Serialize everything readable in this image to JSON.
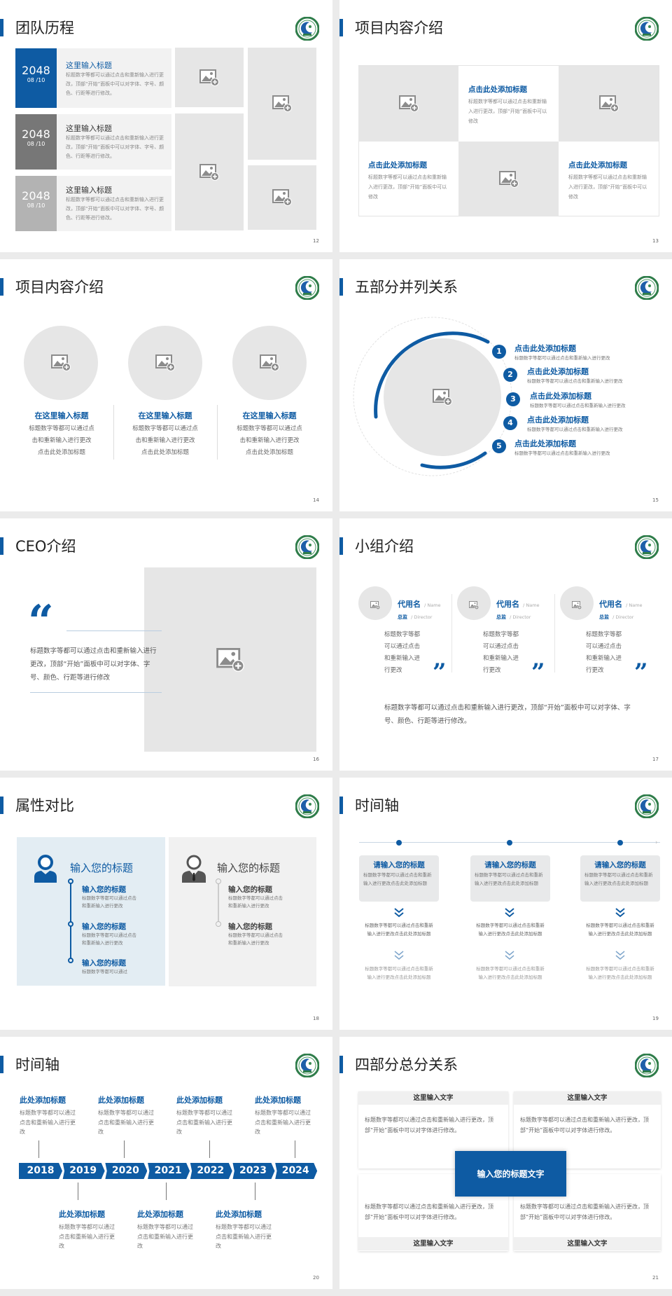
{
  "colors": {
    "accent": "#0e5ba3",
    "placeholder": "#e6e6e6",
    "page_bg": "#ebebeb"
  },
  "icons": {
    "image": "image-placeholder-icon",
    "logo": "school-logo",
    "quote": "quote-mark-icon",
    "person": "person-icon",
    "chevron": "double-chevron-down-icon"
  },
  "s12": {
    "title": "团队历程",
    "page": "12",
    "items": [
      {
        "year": "2048",
        "date": "08 /10",
        "heading": "这里输入标题",
        "body": "标题数字等都可以通过点击和重新输入进行更改，顶部“开始”面板中可以对字体、字号、颜色、行距等进行修改。"
      },
      {
        "year": "2048",
        "date": "08 /10",
        "heading": "这里输入标题",
        "body": "标题数字等都可以通过点击和重新输入进行更改，顶部“开始”面板中可以对字体、字号、颜色、行距等进行修改。"
      },
      {
        "year": "2048",
        "date": "08 /10",
        "heading": "这里输入标题",
        "body": "标题数字等都可以通过点击和重新输入进行更改，顶部“开始”面板中可以对字体、字号、颜色、行距等进行修改。"
      }
    ]
  },
  "s13": {
    "title": "项目内容介绍",
    "page": "13",
    "cells": [
      {
        "heading": "点击此处添加标题",
        "body": "标题数字等都可以通过点击和重新输入进行更改，顶部“开始”面板中可以修改"
      },
      {
        "heading": "点击此处添加标题",
        "body": "标题数字等都可以通过点击和重新输入进行更改，顶部“开始”面板中可以修改"
      },
      {
        "heading": "点击此处添加标题",
        "body": "标题数字等都可以通过点击和重新输入进行更改，顶部“开始”面板中可以修改"
      }
    ]
  },
  "s14": {
    "title": "项目内容介绍",
    "page": "14",
    "items": [
      {
        "heading": "在这里输入标题",
        "lines": [
          "标题数字等都可以通过点",
          "击和重新输入进行更改",
          "点击此处添加标题"
        ]
      },
      {
        "heading": "在这里输入标题",
        "lines": [
          "标题数字等都可以通过点",
          "击和重新输入进行更改",
          "点击此处添加标题"
        ]
      },
      {
        "heading": "在这里输入标题",
        "lines": [
          "标题数字等都可以通过点",
          "击和重新输入进行更改",
          "点击此处添加标题"
        ]
      }
    ]
  },
  "s15": {
    "title": "五部分并列关系",
    "page": "15",
    "items": [
      {
        "num": "1",
        "heading": "点击此处添加标题",
        "body": "标题数字等都可以通过点击和重新输入进行更改"
      },
      {
        "num": "2",
        "heading": "点击此处添加标题",
        "body": "标题数字等都可以通过点击和重新输入进行更改"
      },
      {
        "num": "3",
        "heading": "点击此处添加标题",
        "body": "标题数字等都可以通过点击和重新输入进行更改"
      },
      {
        "num": "4",
        "heading": "点击此处添加标题",
        "body": "标题数字等都可以通过点击和重新输入进行更改"
      },
      {
        "num": "5",
        "heading": "点击此处添加标题",
        "body": "标题数字等都可以通过点击和重新输入进行更改"
      }
    ]
  },
  "s16": {
    "title": "CEO介绍",
    "page": "16",
    "quote_mark": "“",
    "body": "标题数字等都可以通过点击和重新输入进行更改，顶部“开始”面板中可以对字体、字号、颜色、行距等进行修改"
  },
  "s17": {
    "title": "小组介绍",
    "page": "17",
    "members": [
      {
        "name": "代用名",
        "name_en": "/ Name",
        "role": "总监",
        "role_en": "/ Director",
        "lines": [
          "标题数字等都",
          "可以通过点击",
          "和重新输入进",
          "行更改"
        ]
      },
      {
        "name": "代用名",
        "name_en": "/ Name",
        "role": "总监",
        "role_en": "/ Director",
        "lines": [
          "标题数字等都",
          "可以通过点击",
          "和重新输入进",
          "行更改"
        ]
      },
      {
        "name": "代用名",
        "name_en": "/ Name",
        "role": "总监",
        "role_en": "/ Director",
        "lines": [
          "标题数字等都",
          "可以通过点击",
          "和重新输入进",
          "行更改"
        ]
      }
    ],
    "quote_mark": "”",
    "footer": "标题数字等都可以通过点击和重新输入进行更改，顶部“开始”面板中可以对字体、字号、颜色、行距等进行修改。"
  },
  "s18": {
    "title": "属性对比",
    "page": "18",
    "left": {
      "heading": "输入您的标题",
      "items": [
        {
          "t": "输入您的标题",
          "b": "标题数字等都可以通过点击和重新输入进行更改"
        },
        {
          "t": "输入您的标题",
          "b": "标题数字等都可以通过点击和重新输入进行更改"
        },
        {
          "t": "输入您的标题",
          "b": "标题数字等都可以通过"
        }
      ]
    },
    "right": {
      "heading": "输入您的标题",
      "items": [
        {
          "t": "输入您的标题",
          "b": "标题数字等都可以通过点击和重新输入进行更改"
        },
        {
          "t": "输入您的标题",
          "b": "标题数字等都可以通过点击和重新输入进行更改"
        }
      ]
    }
  },
  "s19": {
    "title": "时间轴",
    "page": "19",
    "cols": [
      {
        "heading": "请输入您的标题",
        "body": "标题数字等都可以通过点击和重新输入进行更改点击此处添加标题",
        "sub1": "标题数字等都可以通过点击和重新输入进行更改点击此处添加标题",
        "sub2": "标题数字等都可以通过点击和重新输入进行更改点击此处添加标题"
      },
      {
        "heading": "请输入您的标题",
        "body": "标题数字等都可以通过点击和重新输入进行更改点击此处添加标题",
        "sub1": "标题数字等都可以通过点击和重新输入进行更改点击此处添加标题",
        "sub2": "标题数字等都可以通过点击和重新输入进行更改点击此处添加标题"
      },
      {
        "heading": "请输入您的标题",
        "body": "标题数字等都可以通过点击和重新输入进行更改点击此处添加标题",
        "sub1": "标题数字等都可以通过点击和重新输入进行更改点击此处添加标题",
        "sub2": "标题数字等都可以通过点击和重新输入进行更改点击此处添加标题"
      }
    ]
  },
  "s20": {
    "title": "时间轴",
    "page": "20",
    "years": [
      "2018",
      "2019",
      "2020",
      "2021",
      "2022",
      "2023",
      "2024"
    ],
    "top": [
      {
        "t": "此处添加标题",
        "b": "标题数字等都可以通过点击和重新输入进行更改"
      },
      {
        "t": "此处添加标题",
        "b": "标题数字等都可以通过点击和重新输入进行更改"
      },
      {
        "t": "此处添加标题",
        "b": "标题数字等都可以通过点击和重新输入进行更改"
      },
      {
        "t": "此处添加标题",
        "b": "标题数字等都可以通过点击和重新输入进行更改"
      }
    ],
    "bottom": [
      {
        "t": "此处添加标题",
        "b": "标题数字等都可以通过点击和重新输入进行更改"
      },
      {
        "t": "此处添加标题",
        "b": "标题数字等都可以通过点击和重新输入进行更改"
      },
      {
        "t": "此处添加标题",
        "b": "标题数字等都可以通过点击和重新输入进行更改"
      }
    ]
  },
  "s21": {
    "title": "四部分总分关系",
    "page": "21",
    "center": "输入您的标题文字",
    "boxes": [
      {
        "h": "这里输入文字",
        "b": "标题数字等都可以通过点击和重新输入进行更改，顶部“开始”面板中可以对字体进行修改。"
      },
      {
        "h": "这里输入文字",
        "b": "标题数字等都可以通过点击和重新输入进行更改，顶部“开始”面板中可以对字体进行修改。"
      },
      {
        "h": "这里输入文字",
        "b": "标题数字等都可以通过点击和重新输入进行更改，顶部“开始”面板中可以对字体进行修改。"
      },
      {
        "h": "这里输入文字",
        "b": "标题数字等都可以通过点击和重新输入进行更改，顶部“开始”面板中可以对字体进行修改。"
      }
    ]
  }
}
